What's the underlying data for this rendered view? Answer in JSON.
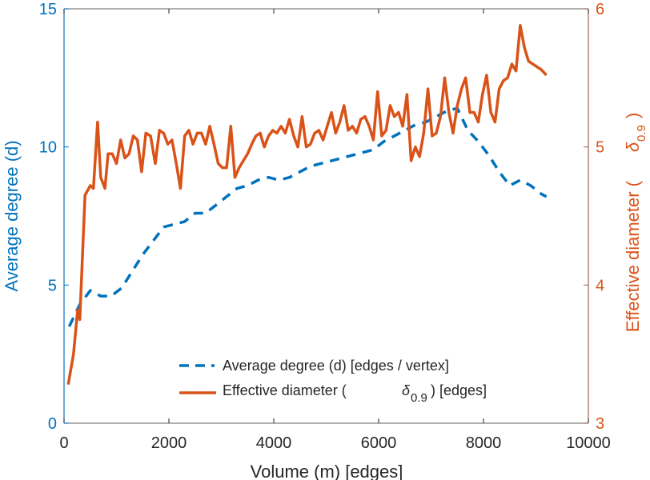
{
  "chart_data": {
    "type": "line",
    "title": "",
    "xlabel": "Volume (m) [edges]",
    "ylabel_left": "Average degree (d)",
    "ylabel_right_prefix": "Effective diameter (",
    "ylabel_right_symbol": "δ",
    "ylabel_right_subscript": "0.9",
    "ylabel_right_suffix": ")",
    "xlim": [
      0,
      10000
    ],
    "ylim_left": [
      0,
      15
    ],
    "ylim_right": [
      3,
      6
    ],
    "xticks": [
      0,
      2000,
      4000,
      6000,
      8000,
      10000
    ],
    "xtick_labels": [
      "0",
      "2000",
      "4000",
      "6000",
      "8000",
      "10000"
    ],
    "yticks_left": [
      0,
      5,
      10,
      15
    ],
    "ytick_labels_left": [
      "0",
      "5",
      "10",
      "15"
    ],
    "yticks_right": [
      3,
      4,
      5,
      6
    ],
    "ytick_labels_right": [
      "3",
      "4",
      "5",
      "6"
    ],
    "grid": false,
    "legend_position": "bottom-center",
    "colors": {
      "left_axis": "#0072BD",
      "right_axis": "#D95319",
      "frame": "#808080",
      "text": "#262626"
    },
    "series": [
      {
        "name": "Average degree (d) [edges / vertex]",
        "axis": "left",
        "style": "dashed",
        "color": "#0072BD",
        "x": [
          100,
          300,
          500,
          700,
          900,
          1100,
          1300,
          1500,
          1700,
          1900,
          2100,
          2300,
          2500,
          2700,
          2900,
          3100,
          3300,
          3500,
          3700,
          3900,
          4100,
          4300,
          4500,
          4700,
          4900,
          5100,
          5300,
          5500,
          5700,
          5900,
          6100,
          6300,
          6500,
          6700,
          6900,
          7100,
          7300,
          7500,
          7700,
          7900,
          8100,
          8300,
          8500,
          8700,
          8900,
          9100,
          9200
        ],
        "values": [
          3.5,
          4.3,
          4.8,
          4.6,
          4.6,
          4.9,
          5.5,
          6.1,
          6.6,
          7.1,
          7.2,
          7.3,
          7.6,
          7.6,
          7.9,
          8.2,
          8.5,
          8.6,
          8.8,
          8.9,
          8.8,
          8.9,
          9.1,
          9.3,
          9.4,
          9.5,
          9.6,
          9.7,
          9.8,
          9.9,
          10.2,
          10.4,
          10.6,
          10.8,
          10.9,
          11.1,
          11.3,
          11.4,
          10.6,
          10.2,
          9.7,
          9.1,
          8.6,
          8.8,
          8.6,
          8.3,
          8.2
        ]
      },
      {
        "name": "Effective diameter (δ0.9) [edges]",
        "axis": "right",
        "style": "solid",
        "color": "#D95319",
        "x": [
          80,
          180,
          260,
          300,
          400,
          500,
          560,
          640,
          700,
          780,
          840,
          920,
          1000,
          1080,
          1160,
          1240,
          1320,
          1400,
          1480,
          1560,
          1650,
          1740,
          1820,
          1900,
          1980,
          2060,
          2140,
          2220,
          2300,
          2380,
          2460,
          2540,
          2620,
          2700,
          2780,
          2860,
          2940,
          3020,
          3100,
          3180,
          3260,
          3340,
          3420,
          3500,
          3580,
          3660,
          3740,
          3820,
          3900,
          3980,
          4060,
          4140,
          4220,
          4300,
          4380,
          4460,
          4540,
          4620,
          4700,
          4780,
          4860,
          4940,
          5020,
          5100,
          5180,
          5260,
          5340,
          5420,
          5500,
          5580,
          5660,
          5740,
          5820,
          5900,
          5980,
          6060,
          6140,
          6220,
          6300,
          6380,
          6460,
          6540,
          6620,
          6700,
          6780,
          6860,
          6940,
          7020,
          7100,
          7180,
          7260,
          7340,
          7420,
          7500,
          7580,
          7660,
          7740,
          7820,
          7900,
          7980,
          8060,
          8140,
          8220,
          8300,
          8380,
          8460,
          8540,
          8620,
          8700,
          8780,
          8860,
          8940,
          9020,
          9100,
          9200
        ],
        "values": [
          3.28,
          3.5,
          3.82,
          3.75,
          4.65,
          4.72,
          4.7,
          5.18,
          4.78,
          4.7,
          4.95,
          4.95,
          4.88,
          5.05,
          4.92,
          4.95,
          5.08,
          5.05,
          4.82,
          5.1,
          5.08,
          4.88,
          5.12,
          5.1,
          5.02,
          5.05,
          4.88,
          4.7,
          5.08,
          5.12,
          5.02,
          5.1,
          5.1,
          5.02,
          5.15,
          5.02,
          4.88,
          4.85,
          4.85,
          5.15,
          4.78,
          4.85,
          4.9,
          4.95,
          5.02,
          5.08,
          5.1,
          5.0,
          5.08,
          5.12,
          5.1,
          5.15,
          5.1,
          5.2,
          5.08,
          5.0,
          5.22,
          5.0,
          5.02,
          5.1,
          5.12,
          5.05,
          5.15,
          5.25,
          5.1,
          5.18,
          5.3,
          5.12,
          5.15,
          5.1,
          5.2,
          5.22,
          5.15,
          5.05,
          5.4,
          5.08,
          5.12,
          5.3,
          5.22,
          5.25,
          5.15,
          5.38,
          4.9,
          5.0,
          4.93,
          5.1,
          5.42,
          5.08,
          5.1,
          5.22,
          5.5,
          5.25,
          5.1,
          5.3,
          5.42,
          5.5,
          5.25,
          5.25,
          5.18,
          5.38,
          5.52,
          5.25,
          5.18,
          5.42,
          5.48,
          5.5,
          5.6,
          5.55,
          5.88,
          5.72,
          5.62,
          5.6,
          5.58,
          5.56,
          5.52
        ]
      }
    ]
  }
}
